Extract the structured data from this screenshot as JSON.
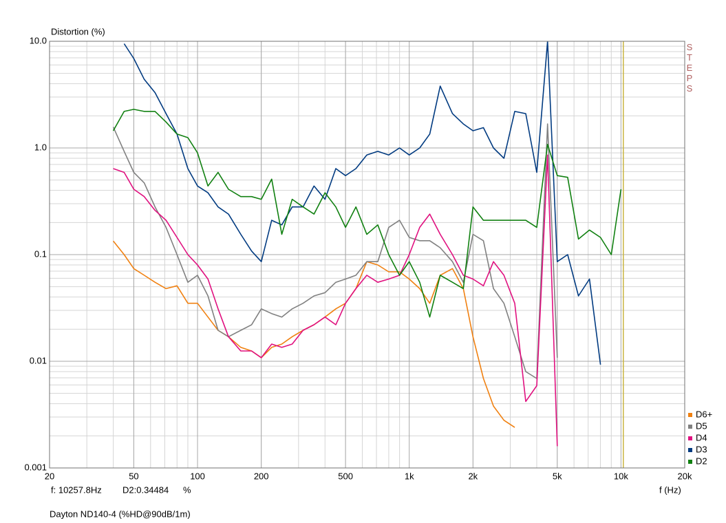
{
  "chart_data": {
    "type": "line",
    "title": "Distortion (%)",
    "x_label": "f (Hz)",
    "footer": "Dayton ND140-4 (%HD@90dB/1m)",
    "side_label": "STEPS",
    "log_x": true,
    "log_y": true,
    "grid": true,
    "minor_grid": true,
    "legend": "lower right",
    "xlim": [
      20,
      20000
    ],
    "ylim": [
      0.001,
      10
    ],
    "xticks": [
      20,
      50,
      100,
      200,
      500,
      {
        "value": 1000,
        "label": "1k"
      },
      {
        "value": 2000,
        "label": "2k"
      },
      {
        "value": 5000,
        "label": "5k"
      },
      {
        "value": 10000,
        "label": "10k"
      },
      {
        "value": 20000,
        "label": "20k"
      }
    ],
    "yticks": [
      {
        "value": 10,
        "label": "10.0"
      },
      {
        "value": 1,
        "label": "1.0"
      },
      0.1,
      0.01,
      0.001
    ],
    "cursor": {
      "x": 10257.8,
      "color": "#c8b440",
      "frequency_label": "f: 10257.8Hz",
      "readout": "D2:0.34484",
      "unit": "%"
    },
    "x": [
      40,
      45,
      50,
      56,
      63,
      71,
      80,
      90,
      100,
      112,
      125,
      140,
      160,
      180,
      200,
      224,
      250,
      280,
      315,
      355,
      400,
      450,
      500,
      560,
      630,
      710,
      800,
      900,
      1000,
      1120,
      1250,
      1400,
      1600,
      1800,
      2000,
      2240,
      2500,
      2800,
      3150,
      3550,
      4000,
      4500,
      5000,
      5600,
      6300,
      7100,
      8000,
      9000,
      10000
    ],
    "series": [
      {
        "name": "D6+",
        "color": "#f08010",
        "values": [
          0.134,
          0.1,
          0.074,
          0.064,
          0.055,
          0.048,
          0.051,
          0.035,
          0.035,
          0.026,
          0.0195,
          0.017,
          0.0135,
          0.0125,
          0.0108,
          0.0135,
          0.0145,
          0.017,
          0.0195,
          0.022,
          0.026,
          0.031,
          0.035,
          0.048,
          0.086,
          0.08,
          0.069,
          0.069,
          0.059,
          0.048,
          0.035,
          0.064,
          0.074,
          0.048,
          0.017,
          0.0069,
          0.0038,
          0.0028,
          0.0024,
          null,
          null,
          null,
          null,
          null,
          null,
          null,
          null,
          null,
          null
        ]
      },
      {
        "name": "D5",
        "color": "#808080",
        "values": [
          1.57,
          0.93,
          0.59,
          0.47,
          0.28,
          0.18,
          0.1,
          0.055,
          0.064,
          0.041,
          0.0195,
          0.017,
          0.0195,
          0.022,
          0.031,
          0.028,
          0.026,
          0.031,
          0.035,
          0.041,
          0.044,
          0.055,
          0.059,
          0.064,
          0.086,
          0.086,
          0.18,
          0.21,
          0.145,
          0.135,
          0.135,
          0.116,
          0.086,
          0.055,
          0.155,
          0.135,
          0.048,
          0.035,
          0.017,
          0.008,
          0.0069,
          1.68,
          0.0108,
          null,
          null,
          null,
          null,
          null,
          null
        ]
      },
      {
        "name": "D4",
        "color": "#e0107f",
        "values": [
          0.64,
          0.59,
          0.41,
          0.35,
          0.26,
          0.21,
          0.145,
          0.1,
          0.08,
          0.059,
          0.031,
          0.017,
          0.0125,
          0.0125,
          0.0108,
          0.0145,
          0.0135,
          0.0145,
          0.0195,
          0.022,
          0.026,
          0.022,
          0.035,
          0.048,
          0.064,
          0.055,
          0.059,
          0.064,
          0.1,
          0.18,
          0.24,
          0.155,
          0.1,
          0.064,
          0.059,
          0.051,
          0.086,
          0.064,
          0.035,
          0.0042,
          0.0059,
          0.86,
          0.0016,
          null,
          null,
          null,
          null,
          null,
          null
        ]
      },
      {
        "name": "D3",
        "color": "#003a80",
        "values": [
          null,
          9.5,
          6.9,
          4.4,
          3.3,
          2.1,
          1.35,
          0.64,
          0.44,
          0.38,
          0.28,
          0.24,
          0.155,
          0.108,
          0.086,
          0.21,
          0.19,
          0.28,
          0.28,
          0.44,
          0.33,
          0.64,
          0.55,
          0.64,
          0.86,
          0.93,
          0.86,
          1.0,
          0.86,
          1.0,
          1.35,
          3.8,
          2.1,
          1.68,
          1.45,
          1.55,
          1.0,
          0.8,
          2.2,
          2.1,
          0.59,
          10,
          0.086,
          0.1,
          0.041,
          0.059,
          0.0093,
          null,
          null
        ]
      },
      {
        "name": "D2",
        "color": "#108010",
        "values": [
          1.45,
          2.2,
          2.3,
          2.2,
          2.2,
          1.75,
          1.35,
          1.25,
          0.9,
          0.44,
          0.59,
          0.41,
          0.35,
          0.35,
          0.33,
          0.51,
          0.155,
          0.33,
          0.28,
          0.24,
          0.38,
          0.28,
          0.18,
          0.28,
          0.155,
          0.19,
          0.1,
          0.064,
          0.086,
          0.055,
          0.026,
          0.064,
          0.055,
          0.048,
          0.28,
          0.21,
          0.21,
          0.21,
          0.21,
          0.21,
          0.18,
          1.08,
          0.55,
          0.53,
          0.14,
          0.17,
          0.145,
          0.1,
          0.41
        ]
      }
    ]
  }
}
